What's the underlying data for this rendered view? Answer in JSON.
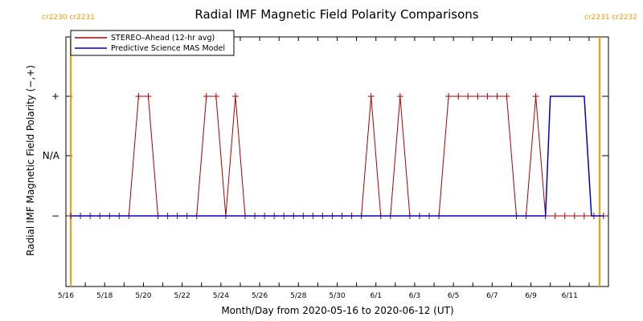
{
  "chart_data": {
    "type": "line",
    "title": "Radial IMF Magnetic Field Polarity Comparisons",
    "xlabel": "Month/Day from 2020-05-16 to 2020-06-12 (UT)",
    "ylabel": "Radial IMF Magnetic Field Polarity (−,+)",
    "x_range": [
      "2020-05-16",
      "2020-06-13"
    ],
    "x_ticks": [
      {
        "date": "2020-05-16",
        "label": "5/16"
      },
      {
        "date": "2020-05-18",
        "label": "5/18"
      },
      {
        "date": "2020-05-20",
        "label": "5/20"
      },
      {
        "date": "2020-05-22",
        "label": "5/22"
      },
      {
        "date": "2020-05-24",
        "label": "5/24"
      },
      {
        "date": "2020-05-26",
        "label": "5/26"
      },
      {
        "date": "2020-05-28",
        "label": "5/28"
      },
      {
        "date": "2020-05-30",
        "label": "5/30"
      },
      {
        "date": "2020-06-01",
        "label": "6/1"
      },
      {
        "date": "2020-06-03",
        "label": "6/3"
      },
      {
        "date": "2020-06-05",
        "label": "6/5"
      },
      {
        "date": "2020-06-07",
        "label": "6/7"
      },
      {
        "date": "2020-06-09",
        "label": "6/9"
      },
      {
        "date": "2020-06-11",
        "label": "6/11"
      }
    ],
    "y_categories": [
      "−",
      "N/A",
      "+"
    ],
    "grid": false,
    "legend_position": "top-left",
    "carrington_markers": [
      {
        "date": "2020-05-16T06:00",
        "label": "cr2230 cr2231",
        "color": "#ff9900"
      },
      {
        "date": "2020-06-12T13:00",
        "label": "cr2231 cr2232",
        "color": "#ff9900"
      }
    ],
    "series": [
      {
        "name": "STEREO–Ahead (12-hr avg)",
        "color": "#aa0000",
        "markers": "plus",
        "points": [
          [
            "2020-05-16T06:00",
            "−"
          ],
          [
            "2020-05-16T18:00",
            "−"
          ],
          [
            "2020-05-17T06:00",
            "−"
          ],
          [
            "2020-05-17T18:00",
            "−"
          ],
          [
            "2020-05-18T06:00",
            "−"
          ],
          [
            "2020-05-18T18:00",
            "−"
          ],
          [
            "2020-05-19T06:00",
            "−"
          ],
          [
            "2020-05-19T18:00",
            "+"
          ],
          [
            "2020-05-20T06:00",
            "+"
          ],
          [
            "2020-05-20T18:00",
            "−"
          ],
          [
            "2020-05-21T06:00",
            "−"
          ],
          [
            "2020-05-21T18:00",
            "−"
          ],
          [
            "2020-05-22T06:00",
            "−"
          ],
          [
            "2020-05-22T18:00",
            "−"
          ],
          [
            "2020-05-23T06:00",
            "+"
          ],
          [
            "2020-05-23T18:00",
            "+"
          ],
          [
            "2020-05-24T06:00",
            "−"
          ],
          [
            "2020-05-24T18:00",
            "+"
          ],
          [
            "2020-05-25T06:00",
            "−"
          ],
          [
            "2020-05-25T18:00",
            "−"
          ],
          [
            "2020-05-26T06:00",
            "−"
          ],
          [
            "2020-05-26T18:00",
            "−"
          ],
          [
            "2020-05-27T06:00",
            "−"
          ],
          [
            "2020-05-27T18:00",
            "−"
          ],
          [
            "2020-05-28T06:00",
            "−"
          ],
          [
            "2020-05-28T18:00",
            "−"
          ],
          [
            "2020-05-29T06:00",
            "−"
          ],
          [
            "2020-05-29T18:00",
            "−"
          ],
          [
            "2020-05-30T06:00",
            "−"
          ],
          [
            "2020-05-30T18:00",
            "−"
          ],
          [
            "2020-05-31T06:00",
            "−"
          ],
          [
            "2020-05-31T18:00",
            "+"
          ],
          [
            "2020-06-01T06:00",
            "−"
          ],
          [
            "2020-06-01T18:00",
            "−"
          ],
          [
            "2020-06-02T06:00",
            "+"
          ],
          [
            "2020-06-02T18:00",
            "−"
          ],
          [
            "2020-06-03T06:00",
            "−"
          ],
          [
            "2020-06-03T18:00",
            "−"
          ],
          [
            "2020-06-04T06:00",
            "−"
          ],
          [
            "2020-06-04T18:00",
            "+"
          ],
          [
            "2020-06-05T06:00",
            "+"
          ],
          [
            "2020-06-05T18:00",
            "+"
          ],
          [
            "2020-06-06T06:00",
            "+"
          ],
          [
            "2020-06-06T18:00",
            "+"
          ],
          [
            "2020-06-07T06:00",
            "+"
          ],
          [
            "2020-06-07T18:00",
            "+"
          ],
          [
            "2020-06-08T06:00",
            "−"
          ],
          [
            "2020-06-08T18:00",
            "−"
          ],
          [
            "2020-06-09T06:00",
            "+"
          ],
          [
            "2020-06-09T18:00",
            "−"
          ],
          [
            "2020-06-10T06:00",
            "−"
          ],
          [
            "2020-06-10T18:00",
            "−"
          ],
          [
            "2020-06-11T06:00",
            "−"
          ],
          [
            "2020-06-11T18:00",
            "−"
          ],
          [
            "2020-06-12T06:00",
            "−"
          ],
          [
            "2020-06-12T18:00",
            "−"
          ]
        ]
      },
      {
        "name": "Predictive Science MAS Model",
        "color": "#0000cc",
        "markers": "none",
        "points": [
          [
            "2020-05-16T06:00",
            "−"
          ],
          [
            "2020-06-09T18:00",
            "−"
          ],
          [
            "2020-06-10T00:00",
            "+"
          ],
          [
            "2020-06-11T18:00",
            "+"
          ],
          [
            "2020-06-12T03:00",
            "−"
          ],
          [
            "2020-06-12T18:00",
            "−"
          ]
        ]
      }
    ]
  }
}
